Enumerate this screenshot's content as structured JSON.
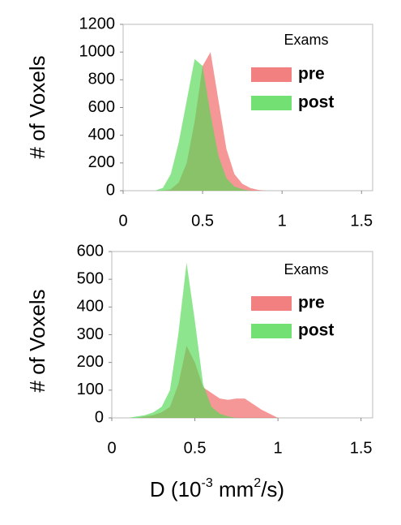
{
  "chart_data": [
    {
      "type": "area",
      "ylabel": "# of Voxels",
      "legend_title": "Exams",
      "legend": "upper right",
      "x": [
        0.2,
        0.25,
        0.3,
        0.35,
        0.4,
        0.45,
        0.5,
        0.55,
        0.6,
        0.65,
        0.7,
        0.75,
        0.8,
        0.85,
        0.9
      ],
      "series": [
        {
          "name": "pre",
          "color": "#f06060",
          "values": [
            0,
            0,
            10,
            60,
            200,
            500,
            900,
            1000,
            650,
            300,
            120,
            50,
            20,
            5,
            0
          ]
        },
        {
          "name": "post",
          "color": "#50d850",
          "values": [
            0,
            20,
            120,
            350,
            650,
            950,
            900,
            550,
            250,
            90,
            30,
            10,
            0,
            0,
            0
          ]
        }
      ],
      "xlim": [
        0,
        1.57
      ],
      "xticks": [
        0,
        0.5,
        1,
        1.5
      ],
      "ylim": [
        0,
        1200
      ],
      "yticks": [
        0,
        200,
        400,
        600,
        800,
        1000,
        1200
      ]
    },
    {
      "type": "area",
      "ylabel": "# of Voxels",
      "legend_title": "Exams",
      "legend": "upper right",
      "x": [
        0.1,
        0.15,
        0.2,
        0.25,
        0.3,
        0.35,
        0.4,
        0.45,
        0.5,
        0.55,
        0.6,
        0.65,
        0.7,
        0.75,
        0.8,
        0.85,
        0.9,
        0.95,
        1.0
      ],
      "series": [
        {
          "name": "pre",
          "color": "#f06060",
          "values": [
            0,
            0,
            5,
            10,
            20,
            40,
            120,
            260,
            200,
            110,
            90,
            70,
            65,
            70,
            70,
            50,
            30,
            15,
            0
          ]
        },
        {
          "name": "post",
          "color": "#50d850",
          "values": [
            0,
            5,
            10,
            20,
            40,
            100,
            300,
            560,
            350,
            120,
            40,
            15,
            5,
            0,
            0,
            0,
            0,
            0,
            0
          ]
        }
      ],
      "xlim": [
        0,
        1.57
      ],
      "xticks": [
        0,
        0.5,
        1,
        1.5
      ],
      "ylim": [
        0,
        600
      ],
      "yticks": [
        0,
        100,
        200,
        300,
        400,
        500,
        600
      ],
      "xlabel": {
        "prefix": "D (10",
        "exponent": "-3",
        "unit": " mm",
        "unit_exponent": "2",
        "suffix": "/s)"
      }
    }
  ]
}
